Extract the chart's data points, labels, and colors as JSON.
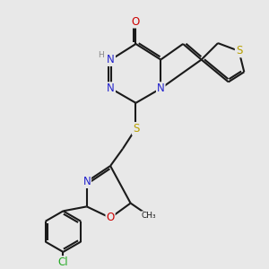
{
  "bg_color": "#e8e8e8",
  "bond_color": "#1a1a1a",
  "bond_width": 1.5,
  "atom_colors": {
    "C": "#1a1a1a",
    "N": "#2222cc",
    "O": "#cc0000",
    "S": "#b8a000",
    "Cl": "#22aa22",
    "H": "#888888"
  },
  "font_size": 8.5
}
